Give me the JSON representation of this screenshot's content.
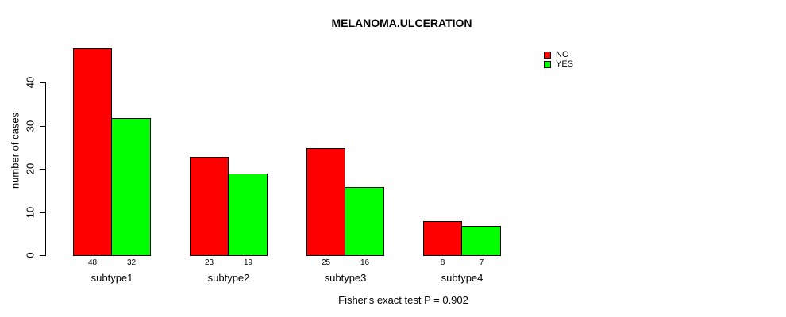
{
  "chart_data": {
    "type": "bar",
    "title": "MELANOMA.ULCERATION",
    "xlabel": "",
    "ylabel": "number of cases",
    "categories": [
      "subtype1",
      "subtype2",
      "subtype3",
      "subtype4"
    ],
    "series": [
      {
        "name": "NO",
        "color": "#FF0000",
        "values": [
          48,
          23,
          25,
          8
        ]
      },
      {
        "name": "YES",
        "color": "#00FF00",
        "values": [
          32,
          19,
          16,
          7
        ]
      }
    ],
    "ylim": [
      0,
      40
    ],
    "yticks": [
      0,
      10,
      20,
      30,
      40
    ],
    "grid": false,
    "legend_position": "top-right",
    "value_labels": true,
    "annotation": "Fisher's exact test P = 0.902"
  },
  "colors": {
    "axis": "#000000",
    "text": "#000000",
    "background": "#FFFFFF"
  }
}
